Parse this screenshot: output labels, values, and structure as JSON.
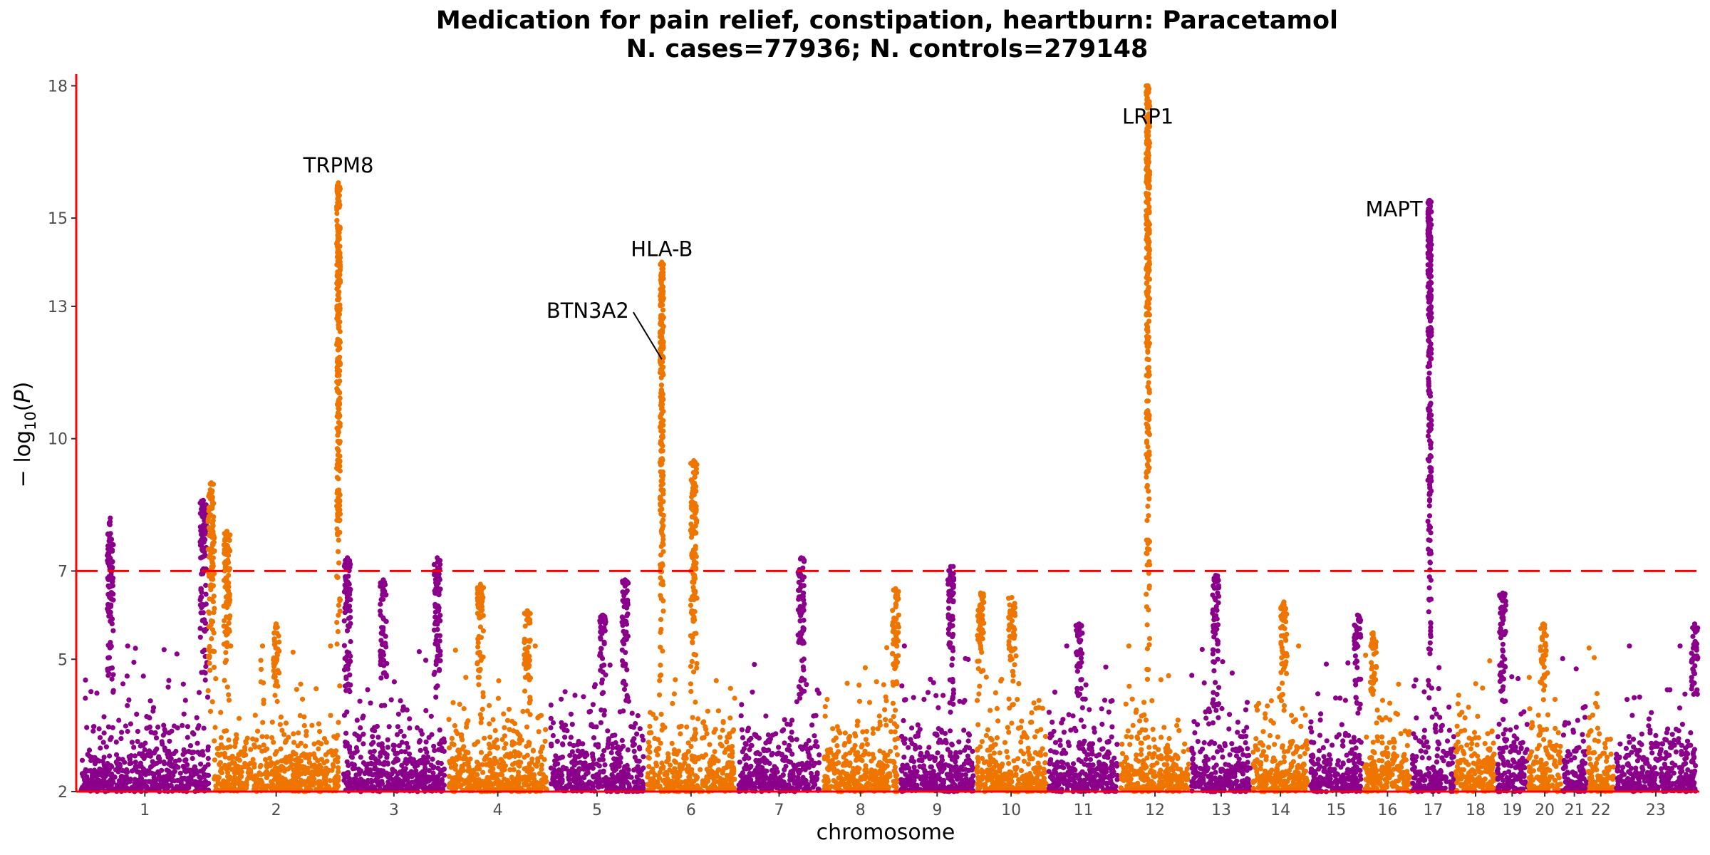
{
  "chart_data": {
    "type": "scatter",
    "subtype": "manhattan",
    "title": "Medication for pain relief, constipation, heartburn: Paracetamol",
    "subtitle": "N. cases=77936; N. controls=279148",
    "xlabel": "chromosome",
    "ylabel": "− log10(P)",
    "ylim": [
      2,
      18.2
    ],
    "yticks": [
      2,
      5,
      7,
      10,
      13,
      15,
      18
    ],
    "significance_threshold": 7,
    "threshold_color": "#ff0000",
    "axis_color": "#ff0000",
    "colors": {
      "odd_chromosomes": "#8b008b",
      "even_chromosomes": "#ee7600"
    },
    "grid": false,
    "legend": "none",
    "chromosomes": [
      {
        "label": "1",
        "len": 249
      },
      {
        "label": "2",
        "len": 243
      },
      {
        "label": "3",
        "len": 198
      },
      {
        "label": "4",
        "len": 191
      },
      {
        "label": "5",
        "len": 181
      },
      {
        "label": "6",
        "len": 171
      },
      {
        "label": "7",
        "len": 159
      },
      {
        "label": "8",
        "len": 146
      },
      {
        "label": "9",
        "len": 141
      },
      {
        "label": "10",
        "len": 136
      },
      {
        "label": "11",
        "len": 135
      },
      {
        "label": "12",
        "len": 133
      },
      {
        "label": "13",
        "len": 115
      },
      {
        "label": "14",
        "len": 107
      },
      {
        "label": "15",
        "len": 102
      },
      {
        "label": "16",
        "len": 90
      },
      {
        "label": "17",
        "len": 81
      },
      {
        "label": "18",
        "len": 78
      },
      {
        "label": "19",
        "len": 59
      },
      {
        "label": "20",
        "len": 63
      },
      {
        "label": "21",
        "len": 48
      },
      {
        "label": "22",
        "len": 51
      },
      {
        "label": "23",
        "len": 155
      }
    ],
    "peaks": [
      {
        "chr": "1",
        "frac": 0.24,
        "max": 8.2
      },
      {
        "chr": "1",
        "frac": 0.94,
        "max": 8.6
      },
      {
        "chr": "2",
        "frac": 0.0,
        "max": 9.0
      },
      {
        "chr": "2",
        "frac": 0.12,
        "max": 7.9
      },
      {
        "chr": "2",
        "frac": 0.5,
        "max": 5.8
      },
      {
        "chr": "2",
        "frac": 0.98,
        "max": 15.8
      },
      {
        "chr": "3",
        "frac": 0.06,
        "max": 7.3
      },
      {
        "chr": "3",
        "frac": 0.4,
        "max": 6.8
      },
      {
        "chr": "3",
        "frac": 0.91,
        "max": 7.3
      },
      {
        "chr": "4",
        "frac": 0.33,
        "max": 6.7
      },
      {
        "chr": "4",
        "frac": 0.79,
        "max": 6.1
      },
      {
        "chr": "5",
        "frac": 0.56,
        "max": 6.0
      },
      {
        "chr": "5",
        "frac": 0.79,
        "max": 6.8
      },
      {
        "chr": "6",
        "frac": 0.18,
        "max": 14.0
      },
      {
        "chr": "6",
        "frac": 0.53,
        "max": 9.5
      },
      {
        "chr": "7",
        "frac": 0.76,
        "max": 7.3
      },
      {
        "chr": "8",
        "frac": 0.95,
        "max": 6.6
      },
      {
        "chr": "9",
        "frac": 0.68,
        "max": 7.1
      },
      {
        "chr": "10",
        "frac": 0.08,
        "max": 6.5
      },
      {
        "chr": "10",
        "frac": 0.51,
        "max": 6.4
      },
      {
        "chr": "11",
        "frac": 0.44,
        "max": 5.8
      },
      {
        "chr": "12",
        "frac": 0.4,
        "max": 18.0
      },
      {
        "chr": "13",
        "frac": 0.41,
        "max": 6.9
      },
      {
        "chr": "14",
        "frac": 0.56,
        "max": 6.3
      },
      {
        "chr": "15",
        "frac": 0.89,
        "max": 6.0
      },
      {
        "chr": "16",
        "frac": 0.2,
        "max": 5.6
      },
      {
        "chr": "17",
        "frac": 0.42,
        "max": 15.4
      },
      {
        "chr": "19",
        "frac": 0.2,
        "max": 6.5
      },
      {
        "chr": "20",
        "frac": 0.46,
        "max": 5.8
      },
      {
        "chr": "23",
        "frac": 0.97,
        "max": 5.8
      }
    ],
    "annotations": [
      {
        "text": "TRPM8",
        "chr": "2",
        "frac": 0.98,
        "y": 16.2,
        "anchor": "middle"
      },
      {
        "text": "HLA-B",
        "chr": "6",
        "frac": 0.18,
        "y": 14.3,
        "anchor": "middle"
      },
      {
        "text": "BTN3A2",
        "chr": "6",
        "frac": 0.18,
        "y": 11.8,
        "anchor": "end",
        "label_y": 12.9,
        "leader": true
      },
      {
        "text": "LRP1",
        "chr": "12",
        "frac": 0.4,
        "y": 17.3,
        "anchor": "middle"
      },
      {
        "text": "MAPT",
        "chr": "17",
        "frac": 0.42,
        "y": 15.2,
        "anchor": "end"
      }
    ]
  }
}
